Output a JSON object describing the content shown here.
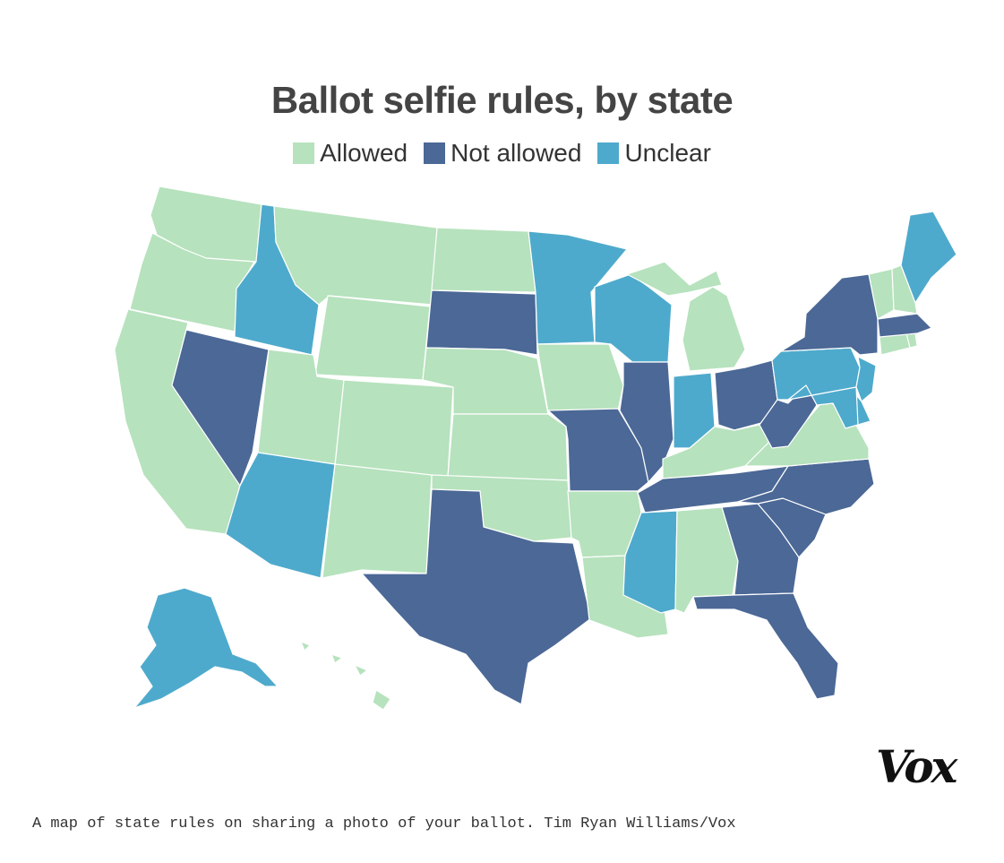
{
  "title": "Ballot selfie rules, by state",
  "legend": [
    {
      "label": "Allowed",
      "color": "#b6e2bd"
    },
    {
      "label": "Not allowed",
      "color": "#4b6896"
    },
    {
      "label": "Unclear",
      "color": "#4eaacc"
    }
  ],
  "logo": "Vox",
  "caption": "A map of state rules on sharing a photo of your ballot. Tim Ryan Williams/Vox",
  "status_colors": {
    "allowed": "#b6e2bd",
    "not_allowed": "#4b6896",
    "unclear": "#4eaacc"
  },
  "states": {
    "WA": "allowed",
    "OR": "allowed",
    "CA": "allowed",
    "NV": "not_allowed",
    "ID": "unclear",
    "MT": "allowed",
    "WY": "allowed",
    "UT": "allowed",
    "AZ": "unclear",
    "CO": "allowed",
    "NM": "allowed",
    "ND": "allowed",
    "SD": "not_allowed",
    "NE": "allowed",
    "KS": "allowed",
    "OK": "allowed",
    "TX": "not_allowed",
    "MN": "unclear",
    "IA": "allowed",
    "MO": "not_allowed",
    "AR": "allowed",
    "LA": "allowed",
    "WI": "unclear",
    "IL": "not_allowed",
    "MI": "allowed",
    "IN": "unclear",
    "OH": "not_allowed",
    "KY": "allowed",
    "TN": "not_allowed",
    "MS": "unclear",
    "AL": "allowed",
    "GA": "not_allowed",
    "FL": "not_allowed",
    "SC": "not_allowed",
    "NC": "not_allowed",
    "VA": "allowed",
    "WV": "not_allowed",
    "PA": "unclear",
    "NY": "not_allowed",
    "NJ": "unclear",
    "DE": "unclear",
    "MD": "unclear",
    "CT": "allowed",
    "RI": "allowed",
    "MA": "not_allowed",
    "VT": "allowed",
    "NH": "allowed",
    "ME": "unclear",
    "AK": "unclear",
    "HI": "allowed"
  }
}
